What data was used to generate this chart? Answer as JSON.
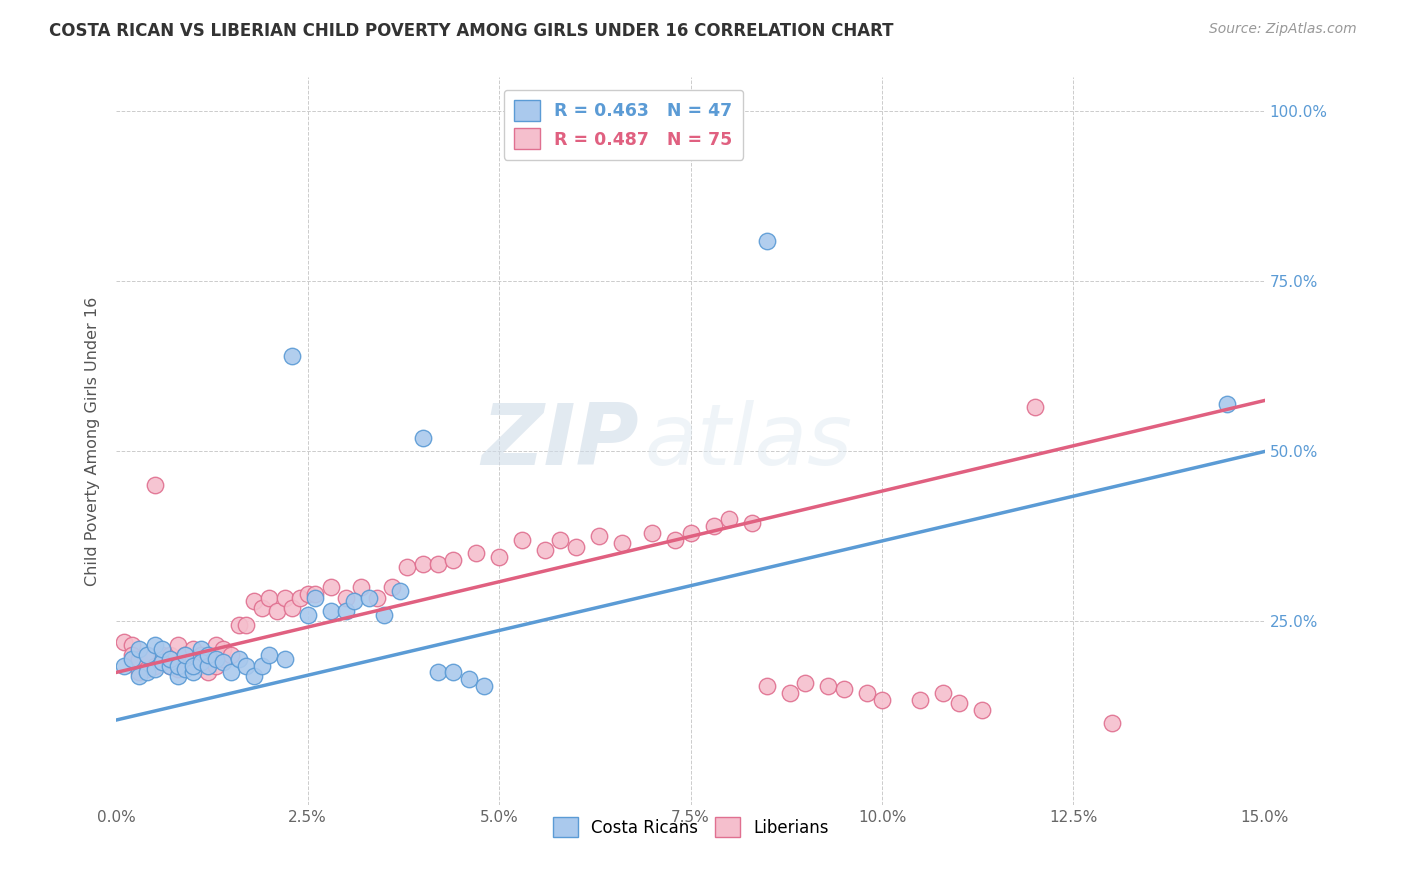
{
  "title": "COSTA RICAN VS LIBERIAN CHILD POVERTY AMONG GIRLS UNDER 16 CORRELATION CHART",
  "source": "Source: ZipAtlas.com",
  "ylabel": "Child Poverty Among Girls Under 16",
  "xlim": [
    0.0,
    0.15
  ],
  "ylim": [
    -0.02,
    1.05
  ],
  "blue_color": "#aac9ed",
  "pink_color": "#f5bfcd",
  "blue_edge_color": "#5b9bd5",
  "pink_edge_color": "#e07090",
  "blue_line_color": "#5b9bd5",
  "pink_line_color": "#e06080",
  "blue_R": 0.463,
  "blue_N": 47,
  "pink_R": 0.487,
  "pink_N": 75,
  "legend_label_blue": "Costa Ricans",
  "legend_label_pink": "Liberians",
  "watermark_zip": "ZIP",
  "watermark_atlas": "atlas",
  "blue_line_x0": 0.0,
  "blue_line_y0": 0.105,
  "blue_line_x1": 0.15,
  "blue_line_y1": 0.5,
  "pink_line_x0": 0.0,
  "pink_line_y0": 0.175,
  "pink_line_x1": 0.15,
  "pink_line_y1": 0.575,
  "blue_scatter_x": [
    0.001,
    0.002,
    0.003,
    0.003,
    0.004,
    0.004,
    0.005,
    0.005,
    0.006,
    0.006,
    0.007,
    0.007,
    0.008,
    0.008,
    0.009,
    0.009,
    0.01,
    0.01,
    0.011,
    0.011,
    0.012,
    0.012,
    0.013,
    0.014,
    0.015,
    0.016,
    0.017,
    0.018,
    0.019,
    0.02,
    0.022,
    0.023,
    0.025,
    0.026,
    0.028,
    0.03,
    0.031,
    0.033,
    0.035,
    0.037,
    0.04,
    0.042,
    0.044,
    0.046,
    0.048,
    0.085,
    0.145
  ],
  "blue_scatter_y": [
    0.185,
    0.195,
    0.17,
    0.21,
    0.175,
    0.2,
    0.18,
    0.215,
    0.19,
    0.21,
    0.185,
    0.195,
    0.17,
    0.185,
    0.18,
    0.2,
    0.175,
    0.185,
    0.21,
    0.19,
    0.185,
    0.2,
    0.195,
    0.19,
    0.175,
    0.195,
    0.185,
    0.17,
    0.185,
    0.2,
    0.195,
    0.64,
    0.26,
    0.285,
    0.265,
    0.265,
    0.28,
    0.285,
    0.26,
    0.295,
    0.52,
    0.175,
    0.175,
    0.165,
    0.155,
    0.81,
    0.57
  ],
  "pink_scatter_x": [
    0.001,
    0.002,
    0.002,
    0.003,
    0.003,
    0.004,
    0.004,
    0.005,
    0.005,
    0.006,
    0.006,
    0.007,
    0.007,
    0.008,
    0.008,
    0.009,
    0.009,
    0.01,
    0.01,
    0.011,
    0.011,
    0.012,
    0.012,
    0.013,
    0.013,
    0.014,
    0.014,
    0.015,
    0.016,
    0.017,
    0.018,
    0.019,
    0.02,
    0.021,
    0.022,
    0.023,
    0.024,
    0.025,
    0.026,
    0.028,
    0.03,
    0.032,
    0.034,
    0.036,
    0.038,
    0.04,
    0.042,
    0.044,
    0.047,
    0.05,
    0.053,
    0.056,
    0.058,
    0.06,
    0.063,
    0.066,
    0.07,
    0.073,
    0.075,
    0.078,
    0.08,
    0.083,
    0.085,
    0.088,
    0.09,
    0.093,
    0.095,
    0.098,
    0.1,
    0.105,
    0.108,
    0.11,
    0.113,
    0.12,
    0.13
  ],
  "pink_scatter_y": [
    0.22,
    0.215,
    0.2,
    0.175,
    0.195,
    0.18,
    0.2,
    0.185,
    0.45,
    0.19,
    0.2,
    0.185,
    0.2,
    0.18,
    0.215,
    0.185,
    0.2,
    0.195,
    0.21,
    0.185,
    0.2,
    0.175,
    0.195,
    0.185,
    0.215,
    0.195,
    0.21,
    0.2,
    0.245,
    0.245,
    0.28,
    0.27,
    0.285,
    0.265,
    0.285,
    0.27,
    0.285,
    0.29,
    0.29,
    0.3,
    0.285,
    0.3,
    0.285,
    0.3,
    0.33,
    0.335,
    0.335,
    0.34,
    0.35,
    0.345,
    0.37,
    0.355,
    0.37,
    0.36,
    0.375,
    0.365,
    0.38,
    0.37,
    0.38,
    0.39,
    0.4,
    0.395,
    0.155,
    0.145,
    0.16,
    0.155,
    0.15,
    0.145,
    0.135,
    0.135,
    0.145,
    0.13,
    0.12,
    0.565,
    0.1
  ]
}
